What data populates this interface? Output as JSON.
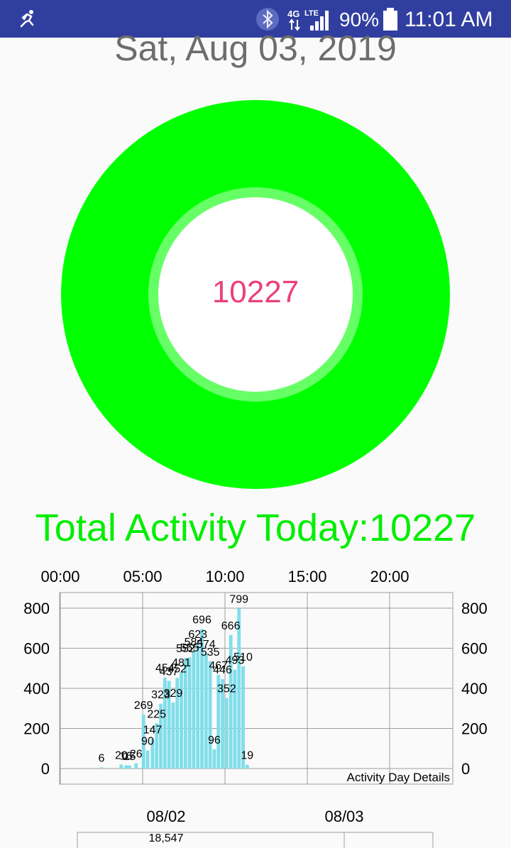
{
  "status_bar": {
    "network": "4G LTE",
    "battery": "90%",
    "time": "11:01 AM"
  },
  "date_title": "Sat, Aug 03, 2019",
  "ring": {
    "value": "10227",
    "outer_color": "#00ff00",
    "inner_color": "#66ff66",
    "text_color": "#ec407a"
  },
  "total_activity": "Total Activity Today:10227",
  "chart_data": [
    {
      "type": "bar",
      "description": "Activity Day Details",
      "x_ticks": [
        "00:00",
        "05:00",
        "10:00",
        "15:00",
        "20:00"
      ],
      "y_ticks": [
        0,
        200,
        400,
        600,
        800
      ],
      "ylim": [
        0,
        800
      ],
      "xlim_hours": [
        0,
        24
      ],
      "bar_color": "#80deea",
      "values": [
        {
          "h": 2.5,
          "v": 6
        },
        {
          "h": 3.7,
          "v": 20
        },
        {
          "h": 4.0,
          "v": 16
        },
        {
          "h": 4.2,
          "v": 15
        },
        {
          "h": 4.6,
          "v": 26
        },
        {
          "h": 5.05,
          "v": 269
        },
        {
          "h": 5.3,
          "v": 90
        },
        {
          "h": 5.6,
          "v": 147
        },
        {
          "h": 5.85,
          "v": 225
        },
        {
          "h": 6.1,
          "v": 323
        },
        {
          "h": 6.35,
          "v": 454
        },
        {
          "h": 6.6,
          "v": 437
        },
        {
          "h": 6.85,
          "v": 329
        },
        {
          "h": 7.1,
          "v": 452
        },
        {
          "h": 7.35,
          "v": 481
        },
        {
          "h": 7.6,
          "v": 552
        },
        {
          "h": 7.85,
          "v": 555
        },
        {
          "h": 8.1,
          "v": 584
        },
        {
          "h": 8.35,
          "v": 623
        },
        {
          "h": 8.6,
          "v": 696
        },
        {
          "h": 8.85,
          "v": 574
        },
        {
          "h": 9.1,
          "v": 535
        },
        {
          "h": 9.35,
          "v": 96
        },
        {
          "h": 9.6,
          "v": 467
        },
        {
          "h": 9.85,
          "v": 446
        },
        {
          "h": 10.1,
          "v": 352
        },
        {
          "h": 10.35,
          "v": 666
        },
        {
          "h": 10.6,
          "v": 493
        },
        {
          "h": 10.85,
          "v": 799
        },
        {
          "h": 11.1,
          "v": 510
        },
        {
          "h": 11.35,
          "v": 19
        }
      ]
    },
    {
      "type": "bar",
      "categories": [
        "08/02",
        "08/03"
      ],
      "values": [
        18547,
        null
      ],
      "value_labels": [
        "18,547"
      ]
    }
  ]
}
